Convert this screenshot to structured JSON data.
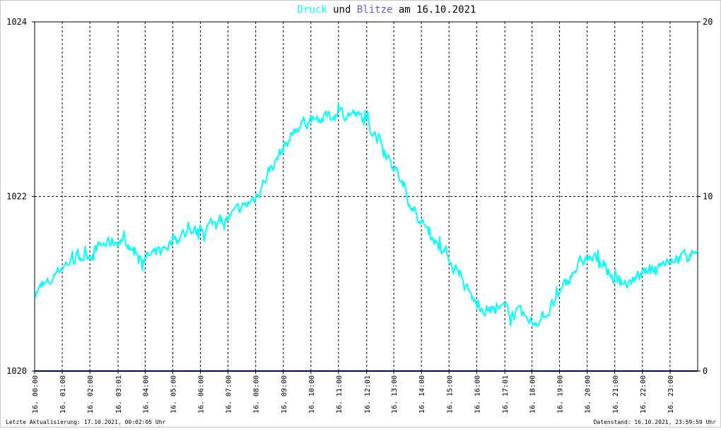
{
  "title": {
    "part1": "Druck",
    "part2": " und ",
    "part3": "Blitze",
    "part4": " am 16.10.2021",
    "color1": "#00ffff",
    "color3": "#6a5acd"
  },
  "footer": {
    "left": "Letzte Aktualisierung: 17.10.2021, 00:02:05 Uhr",
    "right": "Datenstand: 16.10.2021, 23:59:59 Uhr"
  },
  "chart_data": {
    "type": "line",
    "y_left": {
      "min": 1020,
      "max": 1024,
      "ticks": [
        "1024",
        "1022",
        "1020"
      ]
    },
    "y_right": {
      "min": 0,
      "max": 20,
      "ticks": [
        "20",
        "10",
        "0"
      ]
    },
    "x_ticks": [
      "16. 00:00",
      "16. 01:00",
      "16. 02:00",
      "16. 03:01",
      "16. 04:00",
      "16. 05:00",
      "16. 06:00",
      "16. 07:00",
      "16. 08:00",
      "16. 09:00",
      "16. 10:00",
      "16. 11:00",
      "16. 12:01",
      "16. 13:00",
      "16. 14:00",
      "16. 15:00",
      "16. 16:00",
      "16. 17:01",
      "16. 18:00",
      "16. 19:00",
      "16. 20:00",
      "16. 21:00",
      "16. 22:00",
      "16. 23:00"
    ],
    "x_tick_hours": [
      0,
      1,
      2,
      3.02,
      4,
      5,
      6,
      7,
      8,
      9,
      10,
      11,
      12.02,
      13,
      14,
      15,
      16,
      17.02,
      18,
      19,
      20,
      21,
      22,
      23
    ],
    "grid": true,
    "series": [
      {
        "color": "#00ffff",
        "axis": "left",
        "hours": [
          0,
          0.5,
          1,
          1.5,
          2,
          2.5,
          3,
          3.5,
          4,
          4.5,
          5,
          5.5,
          6,
          6.5,
          7,
          7.25,
          7.5,
          8,
          8.5,
          9,
          9.5,
          10,
          10.5,
          11,
          11.5,
          12,
          12.5,
          13,
          13.5,
          14,
          14.5,
          15,
          15.5,
          16,
          16.5,
          17,
          17.5,
          18,
          18.5,
          19,
          19.5,
          20,
          20.5,
          21,
          21.5,
          22,
          22.5,
          23,
          23.5,
          23.99
        ],
        "values": [
          1020.9,
          1021.0,
          1021.2,
          1021.3,
          1021.35,
          1021.45,
          1021.5,
          1021.4,
          1021.3,
          1021.35,
          1021.5,
          1021.6,
          1021.6,
          1021.7,
          1021.75,
          1021.8,
          1021.85,
          1022.0,
          1022.3,
          1022.55,
          1022.8,
          1022.9,
          1022.9,
          1022.95,
          1022.95,
          1022.85,
          1022.65,
          1022.35,
          1022.0,
          1021.7,
          1021.5,
          1021.3,
          1021.0,
          1020.75,
          1020.7,
          1020.7,
          1020.65,
          1020.55,
          1020.65,
          1020.85,
          1021.15,
          1021.3,
          1021.25,
          1021.05,
          1021.0,
          1021.1,
          1021.2,
          1021.3,
          1021.3,
          1021.4
        ]
      },
      {
        "color": "#000080",
        "axis": "right",
        "hours": [
          0,
          23.99
        ],
        "values": [
          0,
          0
        ]
      }
    ]
  }
}
